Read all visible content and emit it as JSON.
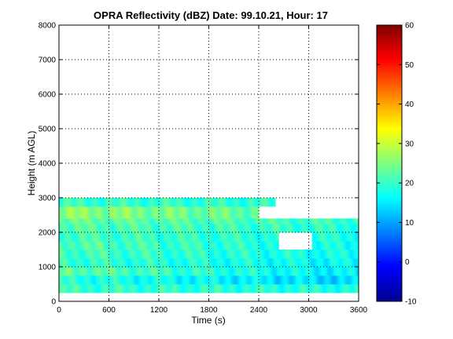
{
  "chart_data": {
    "type": "heatmap",
    "title": "OPRA Reflectivity (dBZ)  Date: 99.10.21, Hour: 17",
    "xlabel": "Time (s)",
    "ylabel": "Height (m AGL)",
    "xlim": [
      0,
      3600
    ],
    "ylim": [
      0,
      8000
    ],
    "x_ticks": [
      "0",
      "600",
      "1200",
      "1800",
      "2400",
      "3000",
      "3600"
    ],
    "y_ticks": [
      "0",
      "1000",
      "2000",
      "3000",
      "4000",
      "5000",
      "6000",
      "7000",
      "8000"
    ],
    "grid": true,
    "colorbar": {
      "colormap": "jet",
      "range": [
        -10,
        60
      ],
      "ticks": [
        "-10",
        "0",
        "10",
        "20",
        "30",
        "40",
        "50",
        "60"
      ]
    },
    "data_extent": {
      "time_s": [
        0,
        3600
      ],
      "height_m": [
        250,
        3000
      ]
    },
    "layers": [
      {
        "h_bottom": 250,
        "h_top": 500,
        "t_start": 0,
        "t_end": 3600,
        "dbz_early": 20,
        "dbz_late": 18
      },
      {
        "h_bottom": 500,
        "h_top": 750,
        "t_start": 0,
        "t_end": 3600,
        "dbz_early": 19,
        "dbz_late": 13
      },
      {
        "h_bottom": 750,
        "h_top": 1000,
        "t_start": 0,
        "t_end": 3600,
        "dbz_early": 23,
        "dbz_late": 15
      },
      {
        "h_bottom": 1000,
        "h_top": 1250,
        "t_start": 0,
        "t_end": 3600,
        "dbz_early": 20,
        "dbz_late": 16
      },
      {
        "h_bottom": 1250,
        "h_top": 1500,
        "t_start": 0,
        "t_end": 3600,
        "dbz_early": 21,
        "dbz_late": 17
      },
      {
        "h_bottom": 1500,
        "h_top": 1750,
        "t_start": 0,
        "t_end": 3600,
        "dbz_early": 22,
        "dbz_late": 17
      },
      {
        "h_bottom": 1750,
        "h_top": 2000,
        "t_start": 0,
        "t_end": 3600,
        "dbz_early": 21,
        "dbz_late": 18
      },
      {
        "h_bottom": 2000,
        "h_top": 2250,
        "t_start": 0,
        "t_end": 3600,
        "dbz_early": 22,
        "dbz_late": 19
      },
      {
        "h_bottom": 2250,
        "h_top": 2400,
        "t_start": 0,
        "t_end": 3600,
        "dbz_early": 23,
        "dbz_late": 20
      },
      {
        "h_bottom": 2400,
        "h_top": 2750,
        "t_start": 0,
        "t_end": 2400,
        "dbz_early": 26,
        "dbz_late": 21
      },
      {
        "h_bottom": 2750,
        "h_top": 3000,
        "t_start": 0,
        "t_end": 2600,
        "dbz_early": 20,
        "dbz_late": 19
      }
    ],
    "gaps": [
      {
        "t_start": 2650,
        "t_end": 3050,
        "h_bottom": 1600,
        "h_top": 2100
      },
      {
        "t_start": 3100,
        "t_end": 3380,
        "h_bottom": 1900,
        "h_top": 2100
      }
    ]
  }
}
